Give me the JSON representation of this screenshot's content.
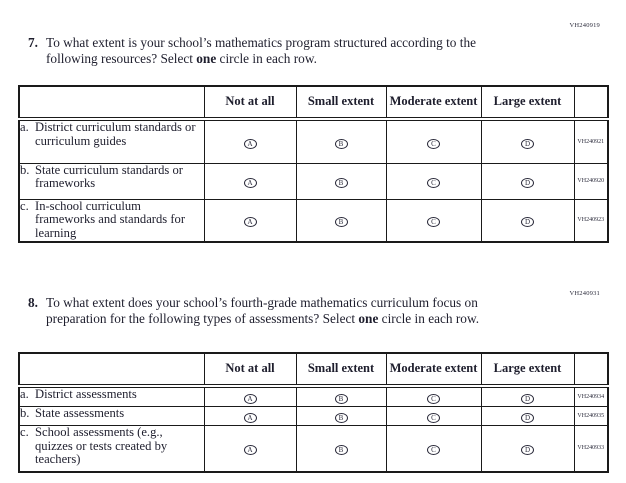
{
  "page": {
    "background_color": "#ffffff",
    "text_color": "#1e1e2d",
    "border_color": "#1a1a1a"
  },
  "answer_circles": [
    "A",
    "B",
    "C",
    "D"
  ],
  "questions": [
    {
      "number": "7.",
      "code": "VH240919",
      "text_before_bold": "To what extent is your school’s mathematics program structured according to the following resources? Select ",
      "bold_word": "one",
      "text_after_bold": " circle in each row.",
      "columns": [
        "Not at all",
        "Small extent",
        "Moderate extent",
        "Large extent"
      ],
      "rows": [
        {
          "label": "a.",
          "text": "District curriculum standards or curriculum guides",
          "code": "VH240921"
        },
        {
          "label": "b.",
          "text": "State curriculum standards or frameworks",
          "code": "VH240920"
        },
        {
          "label": "c.",
          "text": "In-school curriculum frameworks and standards for learning",
          "code": "VH240923"
        }
      ]
    },
    {
      "number": "8.",
      "code": "VH240931",
      "text_before_bold": "To what extent does your school’s fourth-grade mathematics curriculum focus on preparation for the following types of assessments? Select ",
      "bold_word": "one",
      "text_after_bold": " circle in each row.",
      "columns": [
        "Not at all",
        "Small extent",
        "Moderate extent",
        "Large extent"
      ],
      "rows": [
        {
          "label": "a.",
          "text": "District assessments",
          "code": "VH240934"
        },
        {
          "label": "b.",
          "text": "State assessments",
          "code": "VH240935"
        },
        {
          "label": "c.",
          "text": "School assessments (e.g., quizzes or tests created by teachers)",
          "code": "VH240933"
        }
      ]
    }
  ]
}
